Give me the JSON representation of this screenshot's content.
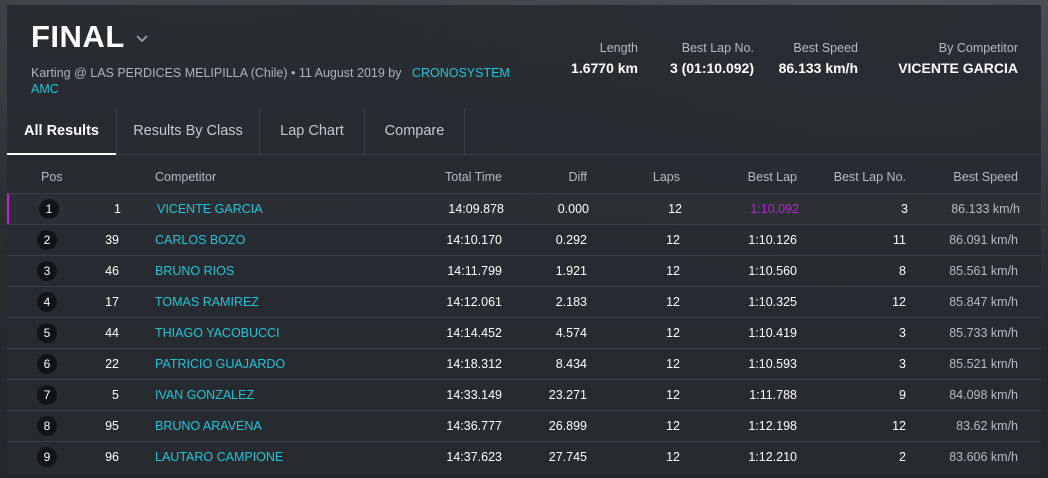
{
  "header": {
    "title": "FINAL",
    "subtitle_prefix": "Karting @ LAS PERDICES MELIPILLA (Chile) • 11 August 2019 by",
    "subtitle_link": "CRONOSYSTEM AMC"
  },
  "stats": [
    {
      "label": "Length",
      "value": "1.6770 km"
    },
    {
      "label": "Best Lap No.",
      "value": "3 (01:10.092)"
    },
    {
      "label": "Best Speed",
      "value": "86.133 km/h"
    },
    {
      "label": "By Competitor",
      "value": "VICENTE GARCIA"
    }
  ],
  "tabs": [
    {
      "label": "All Results",
      "active": true
    },
    {
      "label": "Results By Class",
      "active": false
    },
    {
      "label": "Lap Chart",
      "active": false
    },
    {
      "label": "Compare",
      "active": false
    }
  ],
  "table": {
    "columns": {
      "pos": "Pos",
      "competitor": "Competitor",
      "total_time": "Total Time",
      "diff": "Diff",
      "laps": "Laps",
      "best_lap": "Best Lap",
      "best_lap_no": "Best Lap No.",
      "best_speed": "Best Speed"
    },
    "rows": [
      {
        "pos": "1",
        "no": "1",
        "competitor": "VICENTE GARCIA",
        "total": "14:09.878",
        "diff": "0.000",
        "laps": "12",
        "best_lap": "1:10.092",
        "best_lap_no": "3",
        "speed": "86.133 km/h"
      },
      {
        "pos": "2",
        "no": "39",
        "competitor": "CARLOS BOZO",
        "total": "14:10.170",
        "diff": "0.292",
        "laps": "12",
        "best_lap": "1:10.126",
        "best_lap_no": "11",
        "speed": "86.091 km/h"
      },
      {
        "pos": "3",
        "no": "46",
        "competitor": "BRUNO RIOS",
        "total": "14:11.799",
        "diff": "1.921",
        "laps": "12",
        "best_lap": "1:10.560",
        "best_lap_no": "8",
        "speed": "85.561 km/h"
      },
      {
        "pos": "4",
        "no": "17",
        "competitor": "TOMAS RAMIREZ",
        "total": "14:12.061",
        "diff": "2.183",
        "laps": "12",
        "best_lap": "1:10.325",
        "best_lap_no": "12",
        "speed": "85.847 km/h"
      },
      {
        "pos": "5",
        "no": "44",
        "competitor": "THIAGO YACOBUCCI",
        "total": "14:14.452",
        "diff": "4.574",
        "laps": "12",
        "best_lap": "1:10.419",
        "best_lap_no": "3",
        "speed": "85.733 km/h"
      },
      {
        "pos": "6",
        "no": "22",
        "competitor": "PATRICIO GUAJARDO",
        "total": "14:18.312",
        "diff": "8.434",
        "laps": "12",
        "best_lap": "1:10.593",
        "best_lap_no": "3",
        "speed": "85.521 km/h"
      },
      {
        "pos": "7",
        "no": "5",
        "competitor": "IVAN GONZALEZ",
        "total": "14:33.149",
        "diff": "23.271",
        "laps": "12",
        "best_lap": "1:11.788",
        "best_lap_no": "9",
        "speed": "84.098 km/h"
      },
      {
        "pos": "8",
        "no": "95",
        "competitor": "BRUNO ARAVENA",
        "total": "14:36.777",
        "diff": "26.899",
        "laps": "12",
        "best_lap": "1:12.198",
        "best_lap_no": "12",
        "speed": "83.62 km/h"
      },
      {
        "pos": "9",
        "no": "96",
        "competitor": "LAUTARO CAMPIONE",
        "total": "14:37.623",
        "diff": "27.745",
        "laps": "12",
        "best_lap": "1:12.210",
        "best_lap_no": "2",
        "speed": "83.606 km/h"
      }
    ]
  },
  "colors": {
    "accent_cyan": "#24c4d8",
    "best_lap_purple": "#b22ad0",
    "leader_marker": "#c027c9"
  },
  "icons": {
    "title_dropdown": "chevron-down-icon"
  }
}
